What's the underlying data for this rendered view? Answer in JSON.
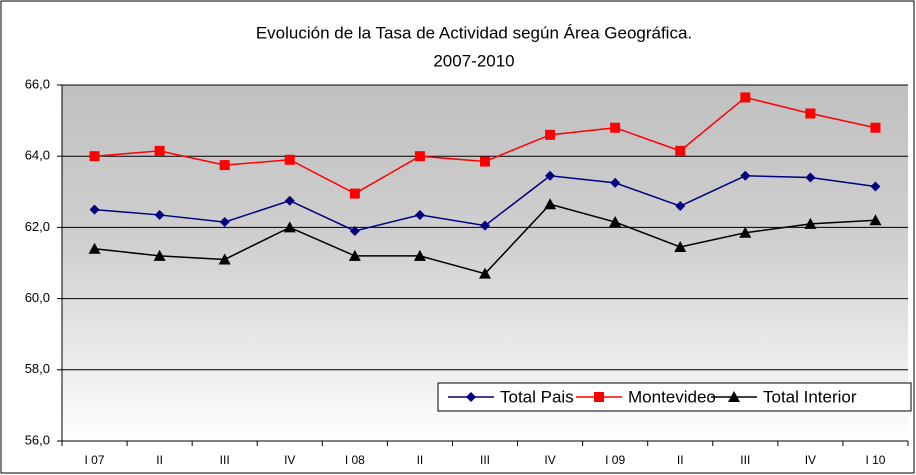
{
  "chart_data": {
    "type": "line",
    "title": "Evolución de la Tasa de Actividad según Área Geográfica.",
    "subtitle": "2007-2010",
    "categories": [
      "I 07",
      "II",
      "III",
      "IV",
      "I 08",
      "II",
      "III",
      "IV",
      "I 09",
      "II",
      "III",
      "IV",
      "I 10"
    ],
    "series": [
      {
        "name": "Total Pais",
        "color": "#000080",
        "marker": "diamond",
        "values": [
          62.5,
          62.35,
          62.15,
          62.75,
          61.9,
          62.35,
          62.05,
          63.45,
          63.25,
          62.6,
          63.45,
          63.4,
          63.15
        ]
      },
      {
        "name": "Montevideo",
        "color": "#ff0000",
        "marker": "square",
        "values": [
          64.0,
          64.15,
          63.75,
          63.9,
          62.95,
          64.0,
          63.85,
          64.6,
          64.8,
          64.15,
          65.65,
          65.2,
          64.8
        ]
      },
      {
        "name": "Total Interior",
        "color": "#000000",
        "marker": "triangle",
        "values": [
          61.4,
          61.2,
          61.1,
          62.0,
          61.2,
          61.2,
          60.7,
          62.65,
          62.15,
          61.45,
          61.85,
          62.1,
          62.2
        ]
      }
    ],
    "ylim": [
      56,
      66
    ],
    "yticks": [
      {
        "value": 56,
        "label": "56,0"
      },
      {
        "value": 58,
        "label": "58,0"
      },
      {
        "value": 60,
        "label": "60,0"
      },
      {
        "value": 62,
        "label": "62,0"
      },
      {
        "value": 64,
        "label": "64,0"
      },
      {
        "value": 66,
        "label": "66,0"
      }
    ],
    "grid": true,
    "legend": "lower right"
  }
}
